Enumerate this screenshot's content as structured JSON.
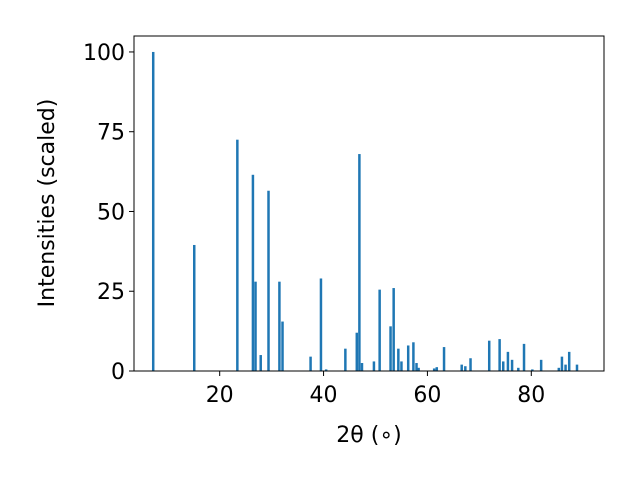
{
  "chart_data": {
    "type": "bar",
    "title": "",
    "xlabel": "2θ (∘)",
    "ylabel": "Intensities (scaled)",
    "xlim": [
      3.5,
      94
    ],
    "ylim": [
      0,
      105
    ],
    "xticks": [
      20,
      40,
      60,
      80
    ],
    "yticks": [
      0,
      25,
      50,
      75,
      100
    ],
    "grid": false,
    "legend": "none",
    "bar_width": 0.8,
    "bar_color": "#1f77b4",
    "series": [
      {
        "x": [
          7.2,
          15.1,
          23.4,
          26.4,
          26.9,
          27.9,
          29.4,
          31.5,
          32.1,
          37.5,
          39.5,
          40.5,
          44.2,
          46.4,
          46.9,
          47.4,
          49.7,
          50.8,
          52.9,
          53.5,
          54.4,
          55.0,
          56.3,
          57.3,
          57.9,
          58.3,
          61.3,
          61.8,
          63.2,
          66.6,
          67.3,
          68.3,
          71.9,
          73.9,
          74.6,
          75.5,
          76.3,
          77.5,
          78.6,
          80.2,
          81.9,
          85.3,
          85.9,
          86.6,
          87.3,
          88.8
        ],
        "y": [
          100,
          39.5,
          72.5,
          61.5,
          28,
          5,
          56.5,
          28,
          15.5,
          4.5,
          29,
          0.5,
          7,
          12,
          68,
          2.5,
          3,
          25.5,
          14,
          26,
          7,
          3,
          8,
          9,
          2.5,
          1,
          0.8,
          1.2,
          7.5,
          2,
          1.5,
          4,
          9.5,
          10,
          3,
          6,
          3.5,
          1,
          8.5,
          0.5,
          3.5,
          1,
          4.5,
          2,
          6,
          2
        ]
      }
    ]
  }
}
